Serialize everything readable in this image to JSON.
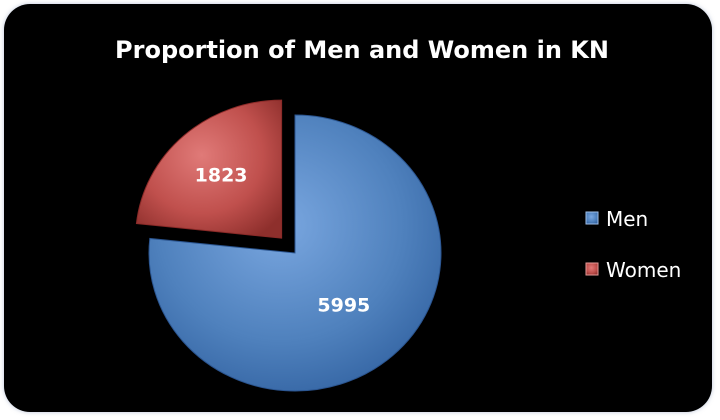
{
  "chart_data": {
    "type": "pie",
    "title": "Proportion of Men and Women in KN",
    "categories": [
      "Men",
      "Women"
    ],
    "values": [
      5995,
      1823
    ],
    "data_labels": [
      "5995",
      "1823"
    ],
    "colors": [
      "#4f81bd",
      "#c0504d"
    ],
    "exploded": [
      "Women"
    ],
    "legend_position": "right",
    "background": "#000000"
  }
}
